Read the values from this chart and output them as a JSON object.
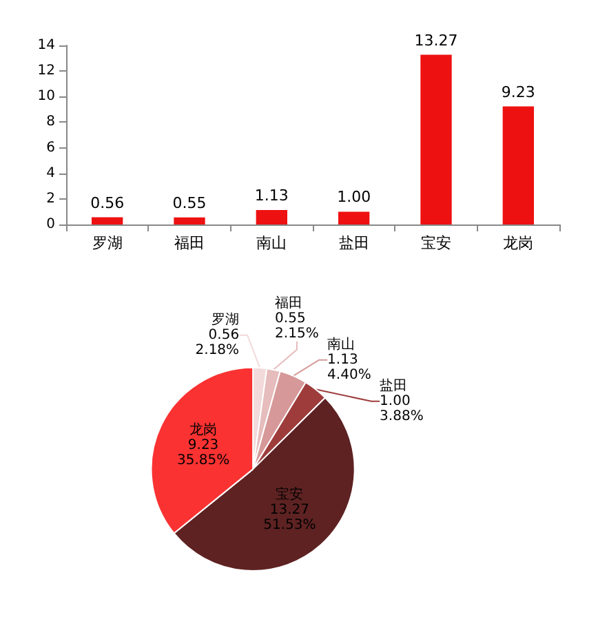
{
  "chart_data": [
    {
      "type": "bar",
      "categories": [
        "罗湖",
        "福田",
        "南山",
        "盐田",
        "宝安",
        "龙岗"
      ],
      "values": [
        0.56,
        0.55,
        1.13,
        1.0,
        13.27,
        9.23
      ],
      "color": "#ee1111",
      "ylim": [
        0,
        14
      ],
      "yticks": [
        0,
        2,
        4,
        6,
        8,
        10,
        12,
        14
      ],
      "grid": false,
      "value_labels": [
        "0.56",
        "0.55",
        "1.13",
        "1.00",
        "13.27",
        "9.23"
      ],
      "legend": false
    },
    {
      "type": "pie",
      "categories": [
        "罗湖",
        "福田",
        "南山",
        "盐田",
        "宝安",
        "龙岗"
      ],
      "values": [
        0.56,
        0.55,
        1.13,
        1.0,
        13.27,
        9.23
      ],
      "colors": [
        "#f2dada",
        "#e6bcbc",
        "#d69898",
        "#9e3c3c",
        "#5e2222",
        "#fa3232"
      ],
      "value_labels": [
        "0.56\n2.18%",
        "0.55\n2.15%",
        "1.13\n4.40%",
        "1.00\n3.88%",
        "13.27\n51.53%",
        "9.23\n35.85%"
      ],
      "legend": false
    }
  ]
}
